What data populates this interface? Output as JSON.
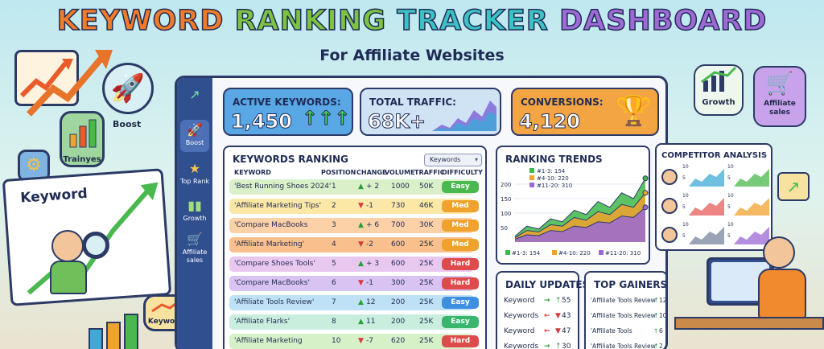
{
  "title": {
    "w1": "KEYWORD",
    "w2": "RANKING",
    "w3": "TRACKER",
    "w4": "DASHBOARD"
  },
  "subtitle": "For Affiliate Websites",
  "scenery": {
    "boost": "Boost",
    "trainyes": "Trainyes",
    "keyword_board": "Keyword",
    "keyword_badge": "Keyword",
    "growth": "Growth",
    "affiliate_sales": "Affiliate sales"
  },
  "sidebar": {
    "items": [
      {
        "label": "",
        "icon": "chart-line-icon"
      },
      {
        "label": "Boost",
        "icon": "rocket-icon"
      },
      {
        "label": "Top Rank",
        "icon": "star-icon"
      },
      {
        "label": "Growth",
        "icon": "bar-chart-icon"
      },
      {
        "label": "Affiliate sales",
        "icon": "cart-icon"
      }
    ]
  },
  "cards": {
    "active": {
      "label": "ACTIVE KEYWORDS:",
      "value": "1,450",
      "color": "#5aa7e6"
    },
    "traffic": {
      "label": "TOTAL TRAFFIC:",
      "value": "68K+",
      "color": "#cfe3f5"
    },
    "conversions": {
      "label": "CONVERSIONS:",
      "value": "4,120",
      "color": "#f4a543"
    }
  },
  "keywords": {
    "title": "KEYWORDS RANKING",
    "dropdown": "Keywords",
    "headers": [
      "KEYWORD",
      "POSITION",
      "CHANGE",
      "VOLUME",
      "TRAFFIC",
      "DIFFICULTY"
    ],
    "rows": [
      {
        "keyword": "'Best Running Shoes 2024'",
        "position": "1",
        "change": "+ 2",
        "dir": "up",
        "volume": "1000",
        "traffic": "50K",
        "difficulty": "Easy",
        "bg": "#d9f0c8",
        "pill": "#49b84e"
      },
      {
        "keyword": "'Affiliate Marketing Tips'",
        "position": "2",
        "change": "-1",
        "dir": "down",
        "volume": "730",
        "traffic": "46K",
        "difficulty": "Med",
        "bg": "#fbe7a6",
        "pill": "#f0a22e"
      },
      {
        "keyword": "'Compare MacBooks",
        "position": "3",
        "change": "+ 6",
        "dir": "up",
        "volume": "700",
        "traffic": "30K",
        "difficulty": "Med",
        "bg": "#fcd1a7",
        "pill": "#f0a22e"
      },
      {
        "keyword": "'Affiliate Marketing'",
        "position": "4",
        "change": "-2",
        "dir": "down",
        "volume": "600",
        "traffic": "25K",
        "difficulty": "Med",
        "bg": "#f9c08d",
        "pill": "#f0a22e"
      },
      {
        "keyword": "'Compare Shoes Tools'",
        "position": "5",
        "change": "+ 3",
        "dir": "up",
        "volume": "600",
        "traffic": "25K",
        "difficulty": "Hard",
        "bg": "#e9c8f0",
        "pill": "#dd4b4b"
      },
      {
        "keyword": "'Compare MacBooks'",
        "position": "6",
        "change": "-1",
        "dir": "down",
        "volume": "300",
        "traffic": "25K",
        "difficulty": "Hard",
        "bg": "#d9c3f2",
        "pill": "#dd4b4b"
      },
      {
        "keyword": "'Affiliate Tools Review'",
        "position": "7",
        "change": "12",
        "dir": "up",
        "volume": "200",
        "traffic": "25K",
        "difficulty": "Easy",
        "bg": "#bfe1f5",
        "pill": "#3f8fe0"
      },
      {
        "keyword": "'Affiliate Flarks'",
        "position": "8",
        "change": "11",
        "dir": "up",
        "volume": "200",
        "traffic": "25K",
        "difficulty": "Easy",
        "bg": "#c9eedd",
        "pill": "#3ab56e"
      },
      {
        "keyword": "'Affiliate Marketing",
        "position": "10",
        "change": "-7",
        "dir": "down",
        "volume": "620",
        "traffic": "25K",
        "difficulty": "Hard",
        "bg": "#d6f0c8",
        "pill": "#dd4b4b"
      }
    ]
  },
  "trends": {
    "title": "RANKING TRENDS",
    "legend": [
      "#1-3: 154",
      "#4-10: 220",
      "#11-20: 310"
    ],
    "bottom_legend": [
      "#1-3: 154",
      "#4-10: 220",
      "#11-20: 310"
    ],
    "colors": [
      "#3fb84a",
      "#f0a22e",
      "#9b6ad6"
    ]
  },
  "chart_data": {
    "type": "area",
    "title": "RANKING TRENDS",
    "ylim": [
      0,
      250
    ],
    "yticks": [
      "200",
      "150",
      "100",
      "50"
    ],
    "series": [
      {
        "name": "#1-3: 154",
        "values": [
          20,
          55,
          45,
          80,
          70,
          110,
          95,
          140,
          120,
          170,
          150,
          220
        ]
      },
      {
        "name": "#4-10: 220",
        "values": [
          15,
          40,
          35,
          60,
          55,
          85,
          75,
          105,
          95,
          130,
          120,
          170
        ]
      },
      {
        "name": "#11-20: 310",
        "values": [
          10,
          25,
          22,
          40,
          36,
          55,
          50,
          70,
          66,
          90,
          85,
          120
        ]
      }
    ]
  },
  "competitor": {
    "title": "COMPETITOR ANALYSIS",
    "ticks": [
      "10",
      "5",
      "10",
      "5",
      "10",
      "5",
      "10",
      "5",
      "10",
      "5",
      "10",
      "5"
    ]
  },
  "daily": {
    "title": "DAILY UPDATES",
    "rows": [
      {
        "label": "Keyword",
        "val": "55",
        "dir": "up"
      },
      {
        "label": "Keywords",
        "val": "43",
        "dir": "down"
      },
      {
        "label": "Keyword",
        "val": "47",
        "dir": "down"
      },
      {
        "label": "Keywords",
        "val": "30",
        "dir": "up"
      }
    ]
  },
  "gainers": {
    "title": "TOP GAINERS",
    "rows": [
      {
        "label": "'Affiliate Tools Review'",
        "val": "12"
      },
      {
        "label": "'Affiliate Tools Review'",
        "val": "10"
      },
      {
        "label": "'Affiliate Tools",
        "val": "6"
      },
      {
        "label": "'Affiliate Tools Review'",
        "val": "2"
      }
    ]
  }
}
